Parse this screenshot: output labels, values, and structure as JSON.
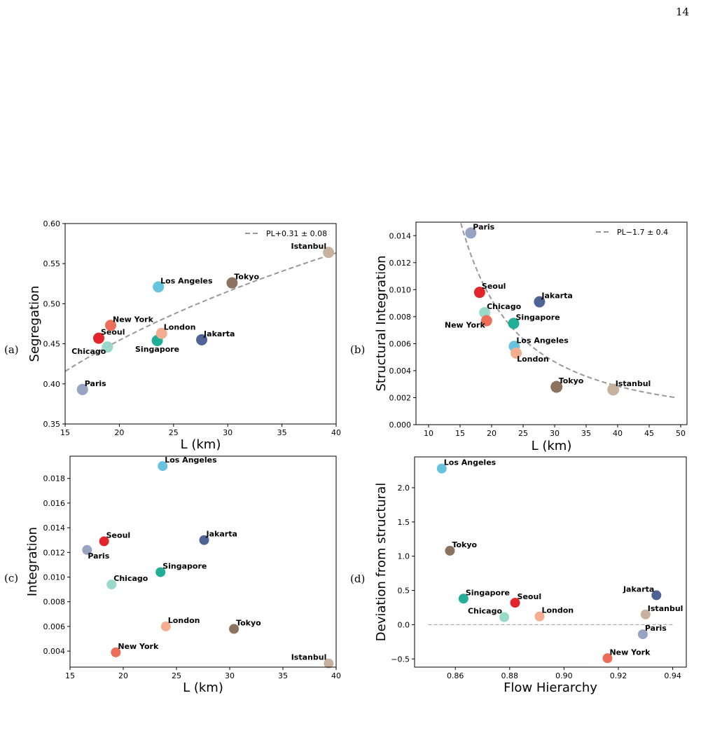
{
  "page_number": "14",
  "colors": {
    "Los Angeles": "#67c3de",
    "Tokyo": "#8c7360",
    "Istanbul": "#c6b29e",
    "Singapore": "#22ad97",
    "London": "#f4ad90",
    "Jakarta": "#4f6395",
    "New York": "#ec6d58",
    "Seoul": "#e2252b",
    "Chicago": "#9ad8c9",
    "Paris": "#98a2c3",
    "fit": "#999999"
  },
  "chart_data": [
    {
      "id": "a",
      "panel_letter": "(a)",
      "type": "scatter",
      "xlabel": "L (km)",
      "ylabel": "Segregation",
      "xlim": [
        15,
        40
      ],
      "ylim": [
        0.35,
        0.6
      ],
      "xticks": [
        "15",
        "20",
        "25",
        "30",
        "35",
        "40"
      ],
      "xtick_values": [
        15,
        20,
        25,
        30,
        35,
        40
      ],
      "yticks": [
        "0.35",
        "0.40",
        "0.45",
        "0.50",
        "0.55",
        "0.60"
      ],
      "ytick_values": [
        0.35,
        0.4,
        0.45,
        0.5,
        0.55,
        0.6
      ],
      "legend": "PL+0.31 ± 0.08",
      "legend_loc": "upper right",
      "fit": {
        "kind": "power",
        "a": 0.1795,
        "b": 0.31,
        "xmin": 15,
        "xmax": 40
      },
      "points": [
        {
          "name": "Paris",
          "x": 16.6,
          "y": 0.393,
          "anchor": "ne"
        },
        {
          "name": "Seoul",
          "x": 18.1,
          "y": 0.457,
          "anchor": "ne"
        },
        {
          "name": "Chicago",
          "x": 18.9,
          "y": 0.446,
          "anchor": "sw"
        },
        {
          "name": "New York",
          "x": 19.2,
          "y": 0.473,
          "anchor": "ne"
        },
        {
          "name": "Singapore",
          "x": 23.5,
          "y": 0.454,
          "anchor": "sc"
        },
        {
          "name": "London",
          "x": 23.9,
          "y": 0.463,
          "anchor": "ne"
        },
        {
          "name": "Los Angeles",
          "x": 23.6,
          "y": 0.521,
          "anchor": "ne"
        },
        {
          "name": "Jakarta",
          "x": 27.6,
          "y": 0.455,
          "anchor": "ne"
        },
        {
          "name": "Tokyo",
          "x": 30.4,
          "y": 0.526,
          "anchor": "ne"
        },
        {
          "name": "Istanbul",
          "x": 39.3,
          "y": 0.564,
          "anchor": "nw"
        }
      ]
    },
    {
      "id": "b",
      "panel_letter": "(b)",
      "type": "scatter",
      "xlabel": "L (km)",
      "ylabel": "Structural Integration",
      "xlim": [
        8,
        51
      ],
      "ylim": [
        0,
        0.015
      ],
      "xticks": [
        "10",
        "15",
        "20",
        "25",
        "30",
        "35",
        "40",
        "45",
        "50"
      ],
      "xtick_values": [
        10,
        15,
        20,
        25,
        30,
        35,
        40,
        45,
        50
      ],
      "yticks": [
        "0.000",
        "0.002",
        "0.004",
        "0.006",
        "0.008",
        "0.010",
        "0.012",
        "0.014"
      ],
      "ytick_values": [
        0,
        0.002,
        0.004,
        0.006,
        0.008,
        0.01,
        0.012,
        0.014
      ],
      "legend": "PL−1.7 ± 0.4",
      "legend_loc": "upper right",
      "fit": {
        "kind": "power",
        "a": 1.51,
        "b": -1.7,
        "xmin": 14.8,
        "xmax": 49
      },
      "points": [
        {
          "name": "Paris",
          "x": 16.7,
          "y": 0.0142,
          "anchor": "ne"
        },
        {
          "name": "Seoul",
          "x": 18.1,
          "y": 0.0098,
          "anchor": "ne"
        },
        {
          "name": "Chicago",
          "x": 18.9,
          "y": 0.0083,
          "anchor": "ne"
        },
        {
          "name": "New York",
          "x": 19.2,
          "y": 0.0077,
          "anchor": "sw"
        },
        {
          "name": "Singapore",
          "x": 23.5,
          "y": 0.0075,
          "anchor": "ne"
        },
        {
          "name": "Jakarta",
          "x": 27.6,
          "y": 0.0091,
          "anchor": "ne"
        },
        {
          "name": "Los Angeles",
          "x": 23.6,
          "y": 0.0058,
          "anchor": "ne"
        },
        {
          "name": "London",
          "x": 23.9,
          "y": 0.0053,
          "anchor": "se"
        },
        {
          "name": "Tokyo",
          "x": 30.3,
          "y": 0.0028,
          "anchor": "ne"
        },
        {
          "name": "Istanbul",
          "x": 39.3,
          "y": 0.0026,
          "anchor": "ne"
        }
      ]
    },
    {
      "id": "c",
      "panel_letter": "(c)",
      "type": "scatter",
      "xlabel": "L (km)",
      "ylabel": "Integration",
      "xlim": [
        15,
        40
      ],
      "ylim": [
        0.0027,
        0.0198
      ],
      "xticks": [
        "15",
        "20",
        "25",
        "30",
        "35",
        "40"
      ],
      "xtick_values": [
        15,
        20,
        25,
        30,
        35,
        40
      ],
      "yticks": [
        "0.004",
        "0.006",
        "0.008",
        "0.010",
        "0.012",
        "0.014",
        "0.016",
        "0.018"
      ],
      "ytick_values": [
        0.004,
        0.006,
        0.008,
        0.01,
        0.012,
        0.014,
        0.016,
        0.018
      ],
      "legend": "",
      "fit": null,
      "points": [
        {
          "name": "Los Angeles",
          "x": 23.7,
          "y": 0.019,
          "anchor": "ne"
        },
        {
          "name": "Seoul",
          "x": 18.2,
          "y": 0.0129,
          "anchor": "ne"
        },
        {
          "name": "Paris",
          "x": 16.6,
          "y": 0.0122,
          "anchor": "se"
        },
        {
          "name": "Jakarta",
          "x": 27.6,
          "y": 0.013,
          "anchor": "ne"
        },
        {
          "name": "Singapore",
          "x": 23.5,
          "y": 0.0104,
          "anchor": "ne"
        },
        {
          "name": "Chicago",
          "x": 18.9,
          "y": 0.0094,
          "anchor": "ne"
        },
        {
          "name": "London",
          "x": 24.0,
          "y": 0.006,
          "anchor": "ne"
        },
        {
          "name": "Tokyo",
          "x": 30.4,
          "y": 0.0058,
          "anchor": "ne"
        },
        {
          "name": "New York",
          "x": 19.3,
          "y": 0.0039,
          "anchor": "ne"
        },
        {
          "name": "Istanbul",
          "x": 39.3,
          "y": 0.003,
          "anchor": "nw"
        }
      ]
    },
    {
      "id": "d",
      "panel_letter": "(d)",
      "type": "scatter",
      "xlabel": "Flow Hierarchy",
      "ylabel": "Deviation from structural",
      "xlim": [
        0.845,
        0.945
      ],
      "ylim": [
        -0.62,
        2.45
      ],
      "xticks": [
        "0.86",
        "0.88",
        "0.90",
        "0.92",
        "0.94"
      ],
      "xtick_values": [
        0.86,
        0.88,
        0.9,
        0.92,
        0.94
      ],
      "yticks": [
        "−0.5",
        "0.0",
        "0.5",
        "1.0",
        "1.5",
        "2.0"
      ],
      "ytick_values": [
        -0.5,
        0.0,
        0.5,
        1.0,
        1.5,
        2.0
      ],
      "legend": "",
      "fit": {
        "kind": "hline",
        "y": 0.0,
        "xmin": 0.85,
        "xmax": 0.94
      },
      "points": [
        {
          "name": "Los Angeles",
          "x": 0.855,
          "y": 2.28,
          "anchor": "ne"
        },
        {
          "name": "Tokyo",
          "x": 0.858,
          "y": 1.08,
          "anchor": "ne"
        },
        {
          "name": "Singapore",
          "x": 0.863,
          "y": 0.38,
          "anchor": "ne"
        },
        {
          "name": "Chicago",
          "x": 0.878,
          "y": 0.11,
          "anchor": "nw"
        },
        {
          "name": "Seoul",
          "x": 0.882,
          "y": 0.32,
          "anchor": "ne"
        },
        {
          "name": "London",
          "x": 0.891,
          "y": 0.12,
          "anchor": "ne"
        },
        {
          "name": "New York",
          "x": 0.916,
          "y": -0.49,
          "anchor": "ne"
        },
        {
          "name": "Jakarta",
          "x": 0.934,
          "y": 0.43,
          "anchor": "nw"
        },
        {
          "name": "Istanbul",
          "x": 0.93,
          "y": 0.15,
          "anchor": "ne"
        },
        {
          "name": "Paris",
          "x": 0.929,
          "y": -0.14,
          "anchor": "ne"
        }
      ]
    }
  ]
}
